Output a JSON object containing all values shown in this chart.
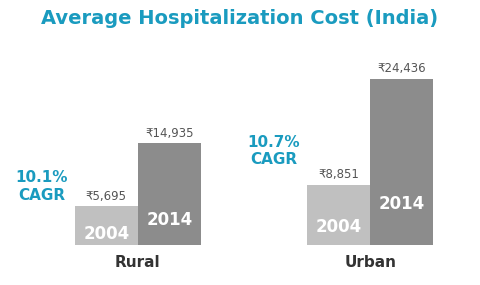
{
  "title": "Average Hospitalization Cost (India)",
  "title_color": "#1a9bbf",
  "title_fontsize": 14,
  "background_color": "#ffffff",
  "groups": [
    "Rural",
    "Urban"
  ],
  "bar_2004_values": [
    5695,
    8851
  ],
  "bar_2014_values": [
    14935,
    24436
  ],
  "bar_2004_color": "#c0c0c0",
  "bar_2014_color": "#8c8c8c",
  "bar_2004_label": "2004",
  "bar_2014_label": "2014",
  "cagr_values": [
    "10.1%",
    "10.7%"
  ],
  "cagr_color": "#1a9bbf",
  "arrow_color": "#1a9bbf",
  "year_label_color": "#ffffff",
  "value_label_color": "#555555",
  "axis_label_color": "#333333",
  "rupee_symbol": "₹",
  "ylim_max": 30000,
  "xlabel_fontsize": 11,
  "bar_label_fontsize": 12,
  "value_fontsize": 8.5,
  "cagr_fontsize": 11
}
